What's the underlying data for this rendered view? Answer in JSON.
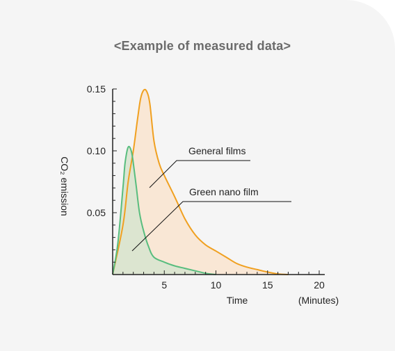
{
  "title": "<Example of measured data>",
  "colors": {
    "background": "#f5f5f5",
    "general_line": "#f0a020",
    "general_fill": "#f9e6d3",
    "green_line": "#58bd7e",
    "green_fill": "#d8e4cf",
    "axis": "#222222"
  },
  "chart_data": {
    "type": "area",
    "xlabel": "Time",
    "xunit": "(Minutes)",
    "ylabel": "CO₂ emission",
    "xlim": [
      0,
      20
    ],
    "ylim": [
      0,
      0.15
    ],
    "xticks": [
      5,
      10,
      15,
      20
    ],
    "xtick_labels": [
      "5",
      "10",
      "15",
      "20"
    ],
    "yticks": [
      0.05,
      0.1,
      0.15
    ],
    "ytick_labels": [
      "0.05",
      "0.10",
      "0.15"
    ],
    "grid": false,
    "series": [
      {
        "name": "General films",
        "x": [
          0,
          1,
          1.5,
          2,
          2.4,
          2.7,
          3,
          3.3,
          3.6,
          4,
          4.5,
          5,
          6,
          7,
          8,
          9,
          10,
          11,
          12,
          13,
          14,
          15,
          16,
          17
        ],
        "y": [
          0,
          0.04,
          0.075,
          0.1,
          0.125,
          0.142,
          0.149,
          0.148,
          0.138,
          0.108,
          0.09,
          0.08,
          0.063,
          0.045,
          0.032,
          0.024,
          0.019,
          0.014,
          0.009,
          0.006,
          0.004,
          0.002,
          0.0005,
          0
        ]
      },
      {
        "name": "Green nano film",
        "x": [
          0,
          0.5,
          1,
          1.2,
          1.5,
          1.8,
          2,
          2.3,
          2.6,
          3,
          3.5,
          4,
          5,
          6,
          7,
          8,
          9,
          10
        ],
        "y": [
          0,
          0.025,
          0.07,
          0.09,
          0.103,
          0.1,
          0.09,
          0.07,
          0.05,
          0.035,
          0.022,
          0.014,
          0.01,
          0.007,
          0.005,
          0.003,
          0.001,
          0
        ]
      }
    ]
  }
}
